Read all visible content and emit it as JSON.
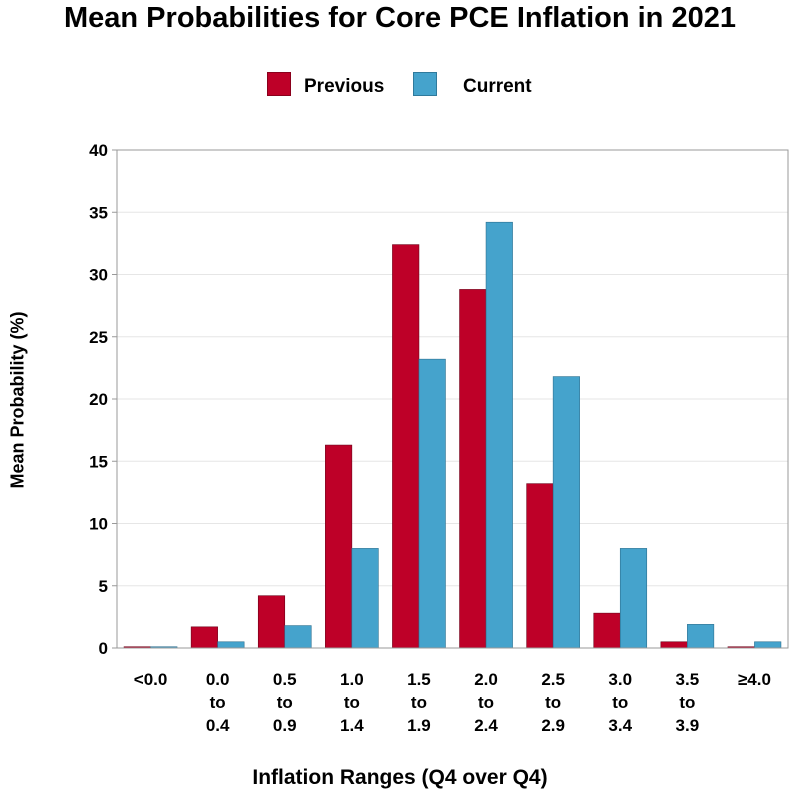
{
  "chart_data": {
    "type": "bar",
    "title": "Mean Probabilities for Core PCE Inflation in 2021",
    "xlabel": "Inflation Ranges (Q4 over Q4)",
    "ylabel": "Mean Probability (%)",
    "ylim": [
      0,
      40
    ],
    "yticks": [
      0,
      5,
      10,
      15,
      20,
      25,
      30,
      35,
      40
    ],
    "grid": true,
    "legend_position": "top",
    "categories": [
      [
        "<0.0"
      ],
      [
        "0.0",
        "to",
        "0.4"
      ],
      [
        "0.5",
        "to",
        "0.9"
      ],
      [
        "1.0",
        "to",
        "1.4"
      ],
      [
        "1.5",
        "to",
        "1.9"
      ],
      [
        "2.0",
        "to",
        "2.4"
      ],
      [
        "2.5",
        "to",
        "2.9"
      ],
      [
        "3.0",
        "to",
        "3.4"
      ],
      [
        "3.5",
        "to",
        "3.9"
      ],
      [
        "≥4.0"
      ]
    ],
    "series": [
      {
        "name": "Previous",
        "color": "#BE0028",
        "values": [
          0.1,
          1.7,
          4.2,
          16.3,
          32.4,
          28.8,
          13.2,
          2.8,
          0.5,
          0.1
        ]
      },
      {
        "name": "Current",
        "color": "#45A3CC",
        "values": [
          0.1,
          0.5,
          1.8,
          8.0,
          23.2,
          34.2,
          21.8,
          8.0,
          1.9,
          0.5
        ]
      }
    ]
  }
}
